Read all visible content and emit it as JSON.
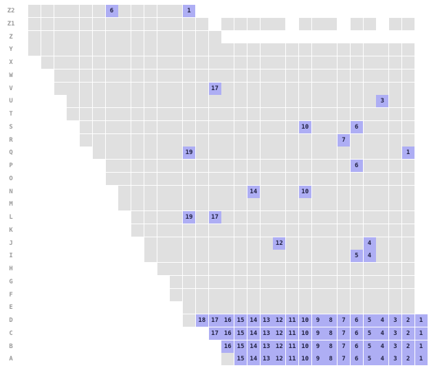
{
  "rows": [
    {
      "label": "Z2",
      "start": 0,
      "end": 12,
      "gaps": [],
      "marks": {
        "6": "6",
        "12": "1"
      }
    },
    {
      "label": "Z1",
      "start": 0,
      "end": 29,
      "gaps": [
        14,
        20,
        24,
        27
      ],
      "marks": {}
    },
    {
      "label": "Z",
      "start": 0,
      "end": 14,
      "gaps": [],
      "marks": {}
    },
    {
      "label": "Y",
      "start": 0,
      "end": 29,
      "gaps": [],
      "marks": {}
    },
    {
      "label": "X",
      "start": 1,
      "end": 29,
      "gaps": [],
      "marks": {}
    },
    {
      "label": "W",
      "start": 2,
      "end": 29,
      "gaps": [],
      "marks": {}
    },
    {
      "label": "V",
      "start": 2,
      "end": 29,
      "gaps": [],
      "marks": {
        "14": "17"
      }
    },
    {
      "label": "U",
      "start": 3,
      "end": 29,
      "gaps": [],
      "marks": {
        "27": "3"
      }
    },
    {
      "label": "T",
      "start": 3,
      "end": 29,
      "gaps": [],
      "marks": {}
    },
    {
      "label": "S",
      "start": 4,
      "end": 29,
      "gaps": [],
      "marks": {
        "21": "10",
        "25": "6"
      }
    },
    {
      "label": "R",
      "start": 4,
      "end": 29,
      "gaps": [],
      "marks": {
        "24": "7"
      }
    },
    {
      "label": "Q",
      "start": 5,
      "end": 29,
      "gaps": [],
      "marks": {
        "12": "19",
        "29": "1"
      }
    },
    {
      "label": "P",
      "start": 6,
      "end": 29,
      "gaps": [],
      "marks": {
        "25": "6"
      }
    },
    {
      "label": "O",
      "start": 6,
      "end": 29,
      "gaps": [],
      "marks": {}
    },
    {
      "label": "N",
      "start": 7,
      "end": 29,
      "gaps": [],
      "marks": {
        "17": "14",
        "21": "10"
      }
    },
    {
      "label": "M",
      "start": 7,
      "end": 29,
      "gaps": [],
      "marks": {}
    },
    {
      "label": "L",
      "start": 8,
      "end": 29,
      "gaps": [],
      "marks": {
        "12": "19",
        "14": "17"
      }
    },
    {
      "label": "K",
      "start": 8,
      "end": 29,
      "gaps": [],
      "marks": {}
    },
    {
      "label": "J",
      "start": 9,
      "end": 29,
      "gaps": [],
      "marks": {
        "19": "12",
        "26": "4"
      }
    },
    {
      "label": "I",
      "start": 9,
      "end": 29,
      "gaps": [],
      "marks": {
        "26": "4",
        "25": "5"
      }
    },
    {
      "label": "H",
      "start": 10,
      "end": 29,
      "gaps": [],
      "marks": {}
    },
    {
      "label": "G",
      "start": 11,
      "end": 29,
      "gaps": [],
      "marks": {}
    },
    {
      "label": "F",
      "start": 11,
      "end": 29,
      "gaps": [],
      "marks": {}
    },
    {
      "label": "E",
      "start": 12,
      "end": 29,
      "gaps": [],
      "marks": {}
    },
    {
      "label": "D",
      "start": 12,
      "end": 29,
      "gaps": [],
      "marks": {
        "13": "18",
        "14": "17",
        "15": "16",
        "16": "15",
        "17": "14",
        "18": "13",
        "19": "12",
        "20": "11",
        "21": "10",
        "22": "9",
        "23": "8",
        "24": "7",
        "25": "6",
        "26": "5",
        "27": "4",
        "28": "3",
        "29": "2",
        "30": "1"
      }
    },
    {
      "label": "C",
      "start": 14,
      "end": 29,
      "gaps": [],
      "marks": {
        "14": "17",
        "15": "16",
        "16": "15",
        "17": "14",
        "18": "13",
        "19": "12",
        "20": "11",
        "21": "10",
        "22": "9",
        "23": "8",
        "24": "7",
        "25": "6",
        "26": "5",
        "27": "4",
        "28": "3",
        "29": "2",
        "30": "1"
      }
    },
    {
      "label": "B",
      "start": 15,
      "end": 29,
      "gaps": [],
      "marks": {
        "15": "16",
        "16": "15",
        "17": "14",
        "18": "13",
        "19": "12",
        "20": "11",
        "21": "10",
        "22": "9",
        "23": "8",
        "24": "7",
        "25": "6",
        "26": "5",
        "27": "4",
        "28": "3",
        "29": "2",
        "30": "1"
      }
    },
    {
      "label": "A",
      "start": 15,
      "end": 29,
      "gaps": [],
      "marks": {
        "16": "15",
        "17": "14",
        "18": "13",
        "19": "12",
        "20": "11",
        "21": "10",
        "22": "9",
        "23": "8",
        "24": "7",
        "25": "6",
        "26": "5",
        "27": "4",
        "28": "3",
        "29": "2",
        "30": "1"
      }
    }
  ]
}
